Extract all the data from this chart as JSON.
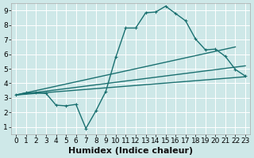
{
  "xlabel": "Humidex (Indice chaleur)",
  "background_color": "#cee8e8",
  "grid_color": "#ffffff",
  "line_color": "#1a7070",
  "xlim": [
    -0.5,
    23.5
  ],
  "ylim": [
    0.5,
    9.5
  ],
  "xticks": [
    0,
    1,
    2,
    3,
    4,
    5,
    6,
    7,
    8,
    9,
    10,
    11,
    12,
    13,
    14,
    15,
    16,
    17,
    18,
    19,
    20,
    21,
    22,
    23
  ],
  "yticks": [
    1,
    2,
    3,
    4,
    5,
    6,
    7,
    8,
    9
  ],
  "curve_x": [
    0,
    1,
    2,
    3,
    4,
    5,
    6,
    7,
    8,
    9,
    10,
    11,
    12,
    13,
    14,
    15,
    16,
    17,
    18,
    19,
    20,
    21,
    22,
    23
  ],
  "curve_y": [
    3.2,
    3.35,
    3.35,
    3.3,
    2.5,
    2.45,
    2.55,
    0.9,
    2.1,
    3.45,
    5.8,
    7.8,
    7.8,
    8.85,
    8.9,
    9.3,
    8.8,
    8.3,
    7.05,
    6.3,
    6.35,
    5.85,
    4.95,
    4.5
  ],
  "line2_x": [
    0,
    23
  ],
  "line2_y": [
    3.2,
    4.45
  ],
  "line3_x": [
    0,
    23
  ],
  "line3_y": [
    3.2,
    5.2
  ],
  "line4_x": [
    0,
    22
  ],
  "line4_y": [
    3.2,
    6.5
  ],
  "xlabel_fontsize": 8,
  "tick_fontsize": 6.5
}
